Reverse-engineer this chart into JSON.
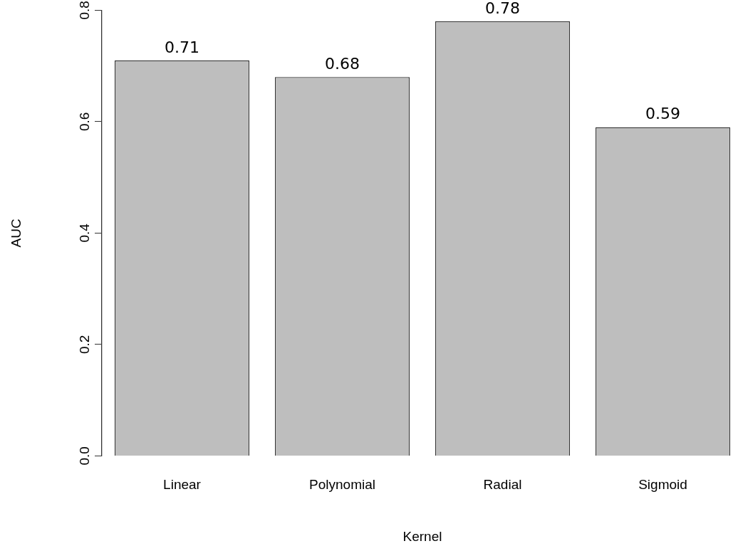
{
  "chart_data": {
    "type": "bar",
    "xlabel": "Kernel",
    "ylabel": "AUC",
    "categories": [
      "Linear",
      "Polynomial",
      "Radial",
      "Sigmoid"
    ],
    "values": [
      0.71,
      0.68,
      0.78,
      0.59
    ],
    "color": "#bebebe",
    "ylim": [
      0,
      0.8
    ],
    "yticks": [
      {
        "value": 0,
        "label": "0.0"
      },
      {
        "value": 0.2,
        "label": "0.2"
      },
      {
        "value": 0.4,
        "label": "0.4"
      },
      {
        "value": 0.6,
        "label": "0.6"
      },
      {
        "value": 0.8,
        "label": "0.8"
      }
    ],
    "grid": false,
    "legend": false,
    "data_labels": true
  }
}
